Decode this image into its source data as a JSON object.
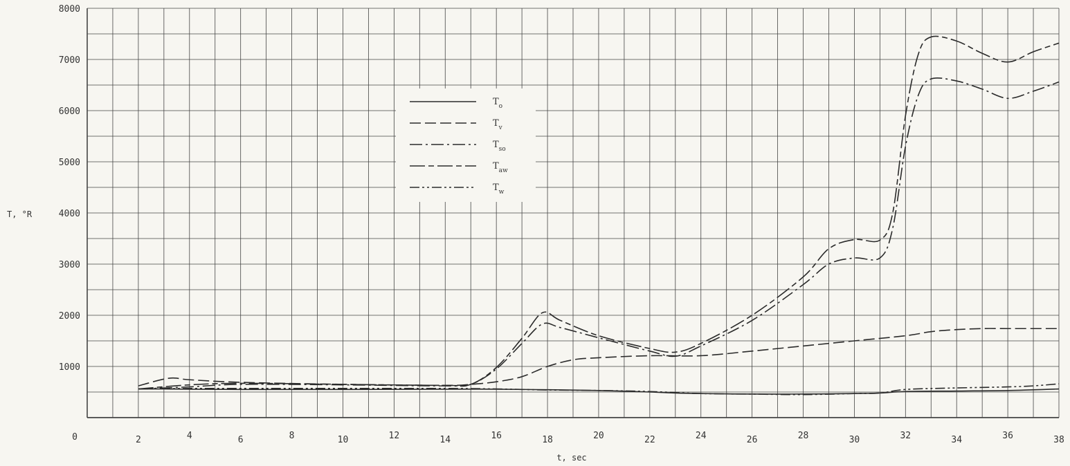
{
  "chart_data": {
    "type": "line",
    "xlabel": "t, sec",
    "ylabel": "T, °R",
    "xlim": [
      0,
      38
    ],
    "ylim": [
      0,
      8000
    ],
    "x_ticks": [
      0,
      2,
      4,
      6,
      8,
      10,
      12,
      14,
      16,
      18,
      20,
      22,
      24,
      26,
      28,
      30,
      32,
      34,
      36,
      38
    ],
    "y_ticks": [
      1000,
      2000,
      3000,
      4000,
      5000,
      6000,
      7000,
      8000
    ],
    "grid": true,
    "legend_position": "upper-left-center",
    "series": [
      {
        "name": "To",
        "name_main": "T",
        "name_sub": "o",
        "dash": "solid",
        "x": [
          2,
          3,
          4,
          6,
          10,
          14,
          16,
          18,
          20,
          22,
          23,
          24,
          26,
          28,
          30,
          31,
          32,
          34,
          36,
          38
        ],
        "y": [
          560,
          560,
          555,
          550,
          550,
          555,
          555,
          545,
          530,
          500,
          480,
          470,
          460,
          460,
          470,
          480,
          510,
          520,
          530,
          560
        ]
      },
      {
        "name": "Tv",
        "name_main": "T",
        "name_sub": "v",
        "dash": "long-dash",
        "x": [
          2,
          3.2,
          4,
          6,
          10,
          14,
          15,
          16,
          17,
          18,
          19,
          20,
          22,
          24,
          26,
          28,
          30,
          32,
          33,
          34,
          35,
          36,
          38
        ],
        "y": [
          620,
          770,
          740,
          690,
          650,
          630,
          650,
          700,
          800,
          1000,
          1130,
          1170,
          1210,
          1210,
          1300,
          1400,
          1500,
          1600,
          1680,
          1720,
          1740,
          1740,
          1740
        ]
      },
      {
        "name": "Tso",
        "name_main": "T",
        "name_sub": "so",
        "dash": "dash-dot",
        "x": [
          2,
          4,
          6,
          10,
          14,
          15,
          16,
          17,
          17.8,
          18.5,
          20,
          22,
          23,
          24,
          26,
          28,
          29,
          30,
          31,
          31.5,
          32,
          32.5,
          33,
          34,
          35,
          36,
          37,
          38
        ],
        "y": [
          560,
          600,
          650,
          640,
          620,
          650,
          950,
          1450,
          1830,
          1760,
          1560,
          1300,
          1200,
          1400,
          1900,
          2600,
          3000,
          3120,
          3120,
          3700,
          5300,
          6300,
          6620,
          6580,
          6420,
          6240,
          6380,
          6560
        ]
      },
      {
        "name": "Taw",
        "name_main": "T",
        "name_sub": "aw",
        "dash": "long-short",
        "x": [
          2,
          4,
          6,
          10,
          14,
          15,
          16,
          17,
          17.8,
          18.5,
          20,
          22,
          23,
          24,
          26,
          28,
          29,
          30,
          31,
          31.5,
          32,
          32.5,
          33,
          34,
          35,
          36,
          37,
          38
        ],
        "y": [
          560,
          640,
          670,
          650,
          630,
          650,
          980,
          1550,
          2050,
          1900,
          1600,
          1350,
          1280,
          1450,
          2000,
          2750,
          3300,
          3480,
          3470,
          4000,
          5900,
          7100,
          7440,
          7360,
          7120,
          6950,
          7150,
          7320
        ]
      },
      {
        "name": "Tw",
        "name_main": "T",
        "name_sub": "w",
        "dash": "dash-dot-dot",
        "x": [
          2,
          4,
          6,
          10,
          14,
          16,
          18,
          20,
          22,
          24,
          26,
          28,
          30,
          31,
          32,
          34,
          36,
          37,
          38
        ],
        "y": [
          560,
          570,
          570,
          570,
          570,
          560,
          540,
          530,
          510,
          470,
          460,
          450,
          470,
          480,
          550,
          580,
          600,
          620,
          660
        ]
      }
    ]
  }
}
